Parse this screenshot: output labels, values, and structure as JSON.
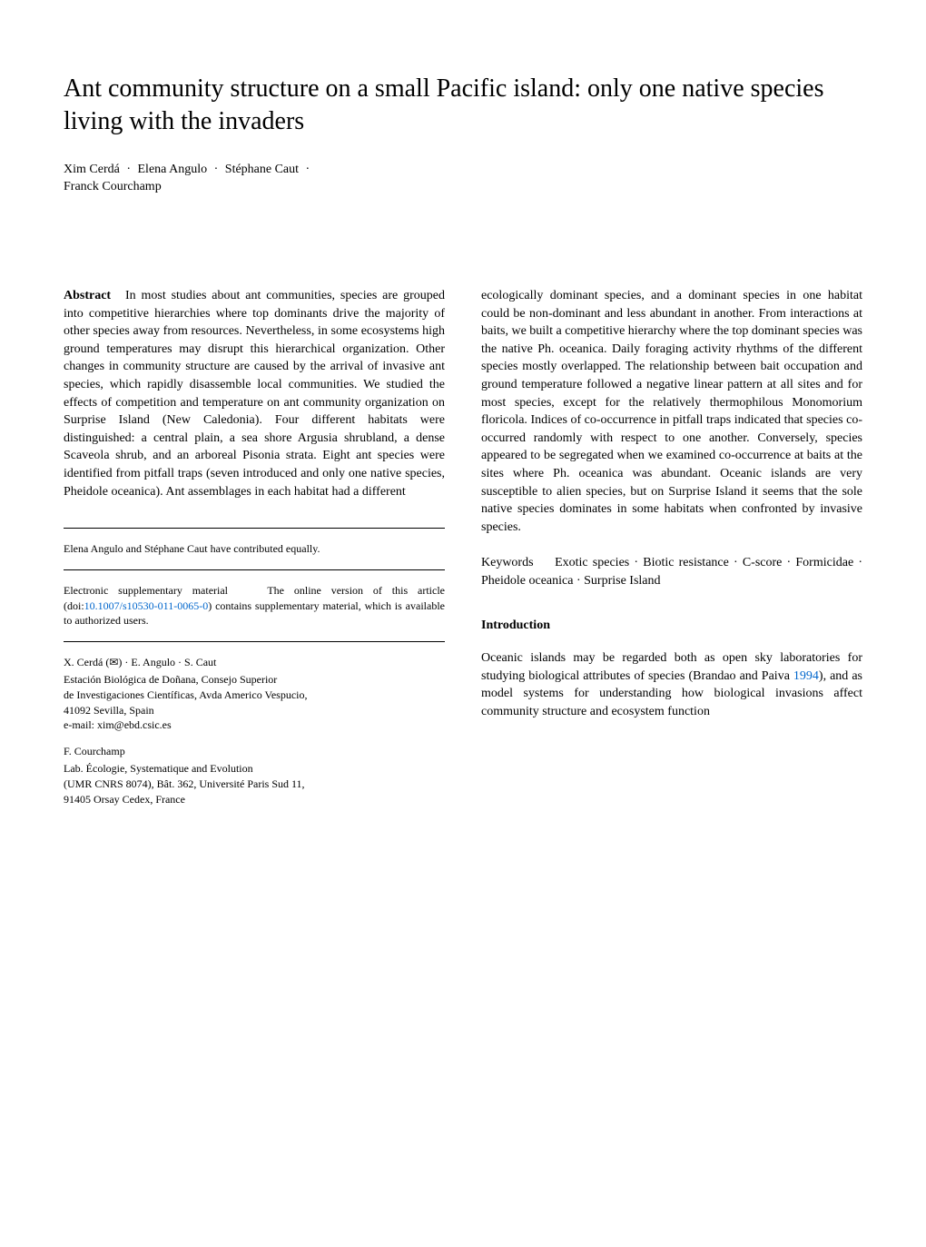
{
  "title": "Ant community structure on a small Pacific island: only one native species living with the invaders",
  "authors": {
    "a1": "Xim Cerdá",
    "a2": "Elena Angulo",
    "a3": "Stéphane Caut",
    "a4": "Franck Courchamp"
  },
  "abstract": {
    "label": "Abstract",
    "text": "In most studies about ant communities, species are grouped into competitive hierarchies where top dominants drive the majority of other species away from resources. Nevertheless, in some ecosystems high ground temperatures may disrupt this hierarchical organization. Other changes in community structure are caused by the arrival of invasive ant species, which rapidly disassemble local communities. We studied the effects of competition and temperature on ant community organization on Surprise Island (New Caledonia). Four different habitats were distinguished: a central plain, a sea shore Argusia shrubland, a dense Scaveola shrub, and an arboreal Pisonia strata. Eight ant species were identified from pitfall traps (seven introduced and only one native species, Pheidole oceanica). Ant assemblages in each habitat had a different"
  },
  "abstract_cont": "ecologically dominant species, and a dominant species in one habitat could be non-dominant and less abundant in another. From interactions at baits, we built a competitive hierarchy where the top dominant species was the native Ph. oceanica. Daily foraging activity rhythms of the different species mostly overlapped. The relationship between bait occupation and ground temperature followed a negative linear pattern at all sites and for most species, except for the relatively thermophilous Monomorium floricola. Indices of co-occurrence in pitfall traps indicated that species co-occurred randomly with respect to one another. Conversely, species appeared to be segregated when we examined co-occurrence at baits at the sites where Ph. oceanica was abundant. Oceanic islands are very susceptible to alien species, but on Surprise Island it seems that the sole native species dominates in some habitats when confronted by invasive species.",
  "keywords": {
    "label": "Keywords",
    "text": "Exotic species · Biotic resistance · C-score · Formicidae · Pheidole oceanica · Surprise Island"
  },
  "contrib_note": "Elena Angulo and Stéphane Caut have contributed equally.",
  "supp": {
    "label": "Electronic supplementary material",
    "pre": "The online version of this article (doi:",
    "doi": "10.1007/s10530-011-0065-0",
    "post": ") contains supplementary material, which is available to authorized users."
  },
  "affil1": {
    "authors": "X. Cerdá (✉) · E. Angulo · S. Caut",
    "l1": "Estación Biológica de Doñana, Consejo Superior",
    "l2": "de Investigaciones Científicas, Avda Americo Vespucio,",
    "l3": "41092 Sevilla, Spain",
    "email": "e-mail: xim@ebd.csic.es"
  },
  "affil2": {
    "authors": "F. Courchamp",
    "l1": "Lab. Écologie, Systematique and Evolution",
    "l2": "(UMR CNRS 8074), Bât. 362, Université Paris Sud 11,",
    "l3": "91405 Orsay Cedex, France"
  },
  "intro": {
    "heading": "Introduction",
    "p1_pre": "Oceanic islands may be regarded both as open sky laboratories for studying biological attributes of species (Brandao and Paiva ",
    "p1_ref": "1994",
    "p1_post": "), and as model systems for understanding how biological invasions affect community structure and ecosystem function"
  }
}
